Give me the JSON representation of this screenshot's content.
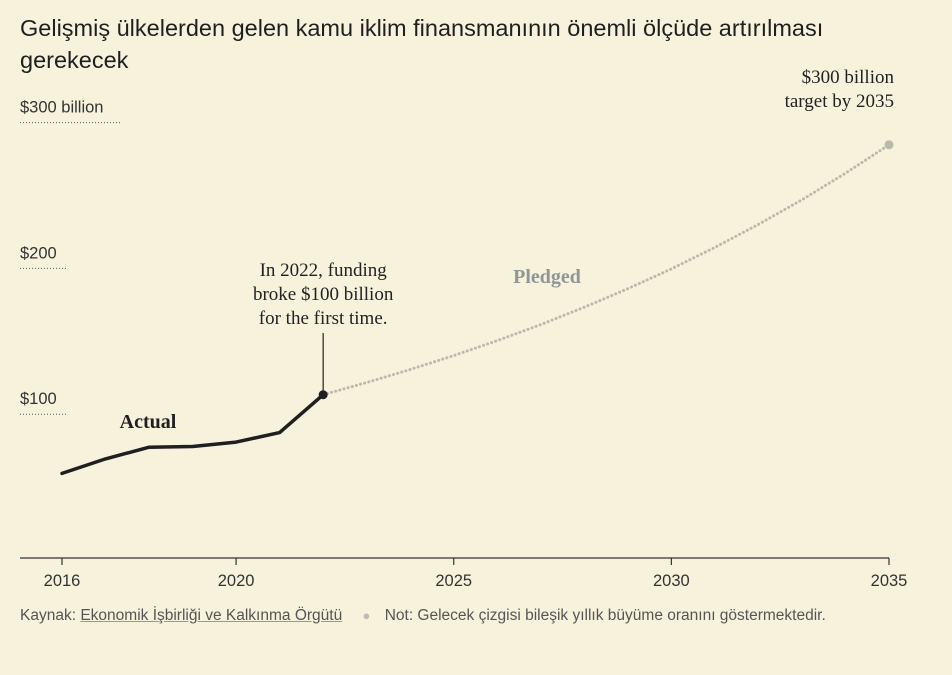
{
  "title": "Gelişmiş ülkelerden gelen kamu iklim finansmanının önemli ölçüde artırılması gerekecek",
  "footer": {
    "source_label": "Kaynak:",
    "source_link": "Ekonomik İşbirliği ve Kalkınma Örgütü",
    "note": "Not: Gelecek çizgisi bileşik yıllık büyüme oranını göstermektedir."
  },
  "colors": {
    "background": "#f6f2dc",
    "actual_line": "#1f1f1f",
    "pledged_line": "#b9b9ad",
    "pledged_label": "#8f9696",
    "axis": "#333333"
  },
  "chart_data": {
    "type": "line",
    "x_ticks": [
      2016,
      2020,
      2025,
      2030,
      2035
    ],
    "x_tick_labels": [
      "2016",
      "2020",
      "2025",
      "2030",
      "2035"
    ],
    "y_ticks": [
      100,
      200,
      300
    ],
    "y_tick_labels": [
      "$100",
      "$200",
      "$300 billion"
    ],
    "xlim": [
      2016,
      2035
    ],
    "ylim": [
      0,
      300
    ],
    "grid": false,
    "series": [
      {
        "name": "Actual",
        "style": "solid",
        "x": [
          2016,
          2017,
          2018,
          2019,
          2020,
          2021,
          2022
        ],
        "y": [
          58,
          68,
          76,
          76.5,
          79.5,
          86,
          112
        ]
      },
      {
        "name": "Pledged",
        "style": "dotted",
        "x": [
          2022,
          2023,
          2024,
          2025,
          2026,
          2027,
          2028,
          2029,
          2030,
          2031,
          2032,
          2033,
          2034,
          2035
        ],
        "y": [
          112,
          120.4,
          129.3,
          138.8,
          149.1,
          160.1,
          172,
          184.7,
          198.3,
          213,
          228.8,
          245.7,
          263.9,
          283.4
        ]
      }
    ],
    "annotations": [
      {
        "id": "funding-2022",
        "text_lines": [
          "In 2022, funding",
          "broke $100 billion",
          "for the first time."
        ],
        "x": 2022,
        "y": 112
      },
      {
        "id": "target-2035",
        "text_lines": [
          "$300 billion",
          "target by 2035"
        ],
        "x": 2035,
        "y": 283.4
      }
    ]
  }
}
